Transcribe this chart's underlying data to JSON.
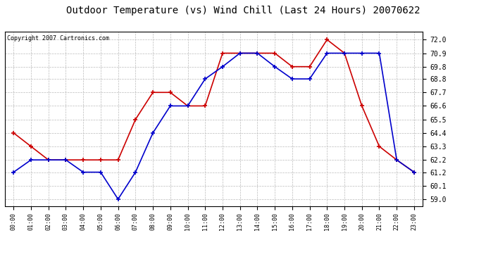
{
  "title": "Outdoor Temperature (vs) Wind Chill (Last 24 Hours) 20070622",
  "copyright_text": "Copyright 2007 Cartronics.com",
  "hours": [
    "00:00",
    "01:00",
    "02:00",
    "03:00",
    "04:00",
    "05:00",
    "06:00",
    "07:00",
    "08:00",
    "09:00",
    "10:00",
    "11:00",
    "12:00",
    "13:00",
    "14:00",
    "15:00",
    "16:00",
    "17:00",
    "18:00",
    "19:00",
    "20:00",
    "21:00",
    "22:00",
    "23:00"
  ],
  "red_data": [
    64.4,
    63.3,
    62.2,
    62.2,
    62.2,
    62.2,
    62.2,
    65.5,
    67.7,
    67.7,
    66.6,
    66.6,
    70.9,
    70.9,
    70.9,
    70.9,
    69.8,
    69.8,
    72.0,
    70.9,
    66.6,
    63.3,
    62.2,
    61.2
  ],
  "blue_data": [
    61.2,
    62.2,
    62.2,
    62.2,
    61.2,
    61.2,
    59.0,
    61.2,
    64.4,
    66.6,
    66.6,
    68.8,
    69.8,
    70.9,
    70.9,
    69.8,
    68.8,
    68.8,
    70.9,
    70.9,
    70.9,
    70.9,
    62.2,
    61.2
  ],
  "y_ticks": [
    59.0,
    60.1,
    61.2,
    62.2,
    63.3,
    64.4,
    65.5,
    66.6,
    67.7,
    68.8,
    69.8,
    70.9,
    72.0
  ],
  "ylim": [
    58.45,
    72.65
  ],
  "red_color": "#cc0000",
  "blue_color": "#0000cc",
  "background_color": "#ffffff",
  "grid_color": "#bbbbbb",
  "title_fontsize": 10,
  "copyright_fontsize": 6
}
